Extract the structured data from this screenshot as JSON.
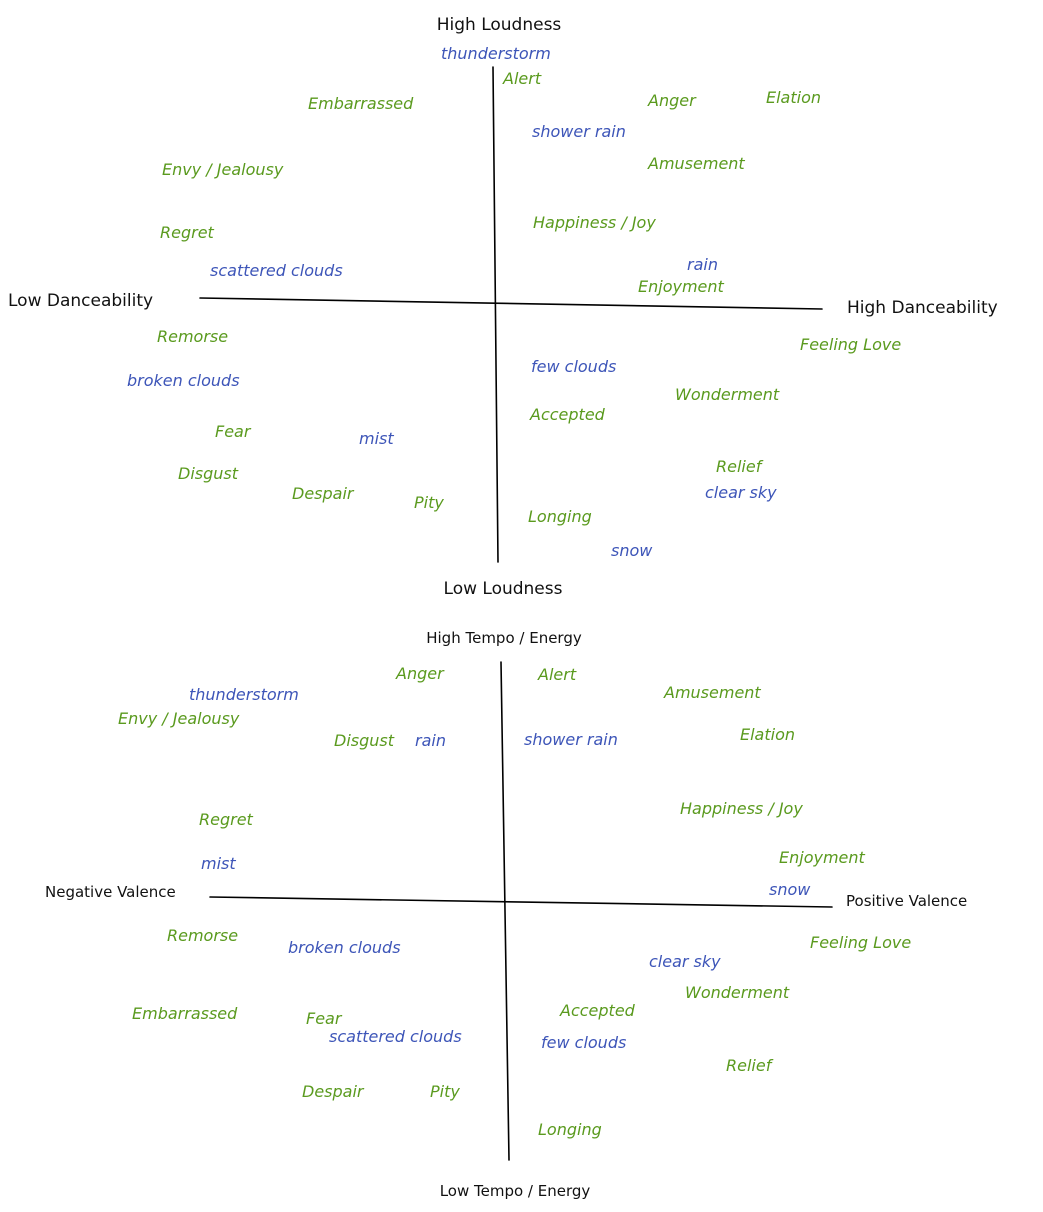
{
  "colors": {
    "emotion": "#5a9a1e",
    "weather": "#3d55b8",
    "axis": "#000000"
  },
  "diagrams": [
    {
      "id": "loudness-danceability",
      "axis_labels": {
        "top": "High Loudness",
        "bottom": "Low Loudness",
        "left": "Low Danceability",
        "right": "High Danceability"
      },
      "emotions": [
        "Alert",
        "Embarrassed",
        "Anger",
        "Elation",
        "Amusement",
        "Envy / Jealousy",
        "Happiness / Joy",
        "Regret",
        "Enjoyment",
        "Remorse",
        "Feeling Love",
        "Wonderment",
        "Accepted",
        "Fear",
        "Relief",
        "Disgust",
        "Despair",
        "Pity",
        "Longing"
      ],
      "weather": [
        "thunderstorm",
        "shower rain",
        "scattered clouds",
        "rain",
        "broken clouds",
        "few clouds",
        "mist",
        "clear sky",
        "snow"
      ]
    },
    {
      "id": "tempo-valence",
      "axis_labels": {
        "top": "High Tempo / Energy",
        "bottom": "Low Tempo / Energy",
        "left": "Negative Valence",
        "right": "Positive Valence"
      },
      "emotions": [
        "Anger",
        "Alert",
        "Amusement",
        "Envy / Jealousy",
        "Disgust",
        "Elation",
        "Happiness / Joy",
        "Regret",
        "Enjoyment",
        "Remorse",
        "Feeling Love",
        "Wonderment",
        "Accepted",
        "Embarrassed",
        "Fear",
        "Relief",
        "Despair",
        "Pity",
        "Longing"
      ],
      "weather": [
        "thunderstorm",
        "rain",
        "shower rain",
        "mist",
        "snow",
        "broken clouds",
        "clear sky",
        "scattered clouds",
        "few clouds"
      ]
    }
  ]
}
